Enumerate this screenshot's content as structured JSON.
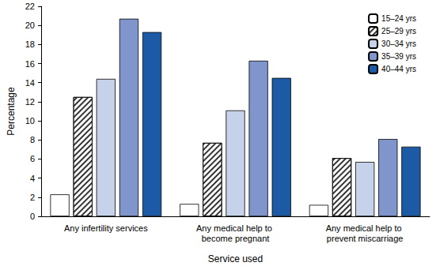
{
  "chart_data": {
    "type": "bar",
    "x_label": "Service used",
    "y_label": "Percentage",
    "categories": [
      "Any infertility services",
      "Any medical help to become pregnant",
      "Any medical help to prevent miscarriage"
    ],
    "series": [
      {
        "name": "15–24 yrs",
        "color": "#ffffff",
        "values": [
          2.3,
          1.3,
          1.2
        ]
      },
      {
        "name": "25–29 yrs",
        "color": "#ffffff",
        "values": [
          12.5,
          7.7,
          6.1
        ]
      },
      {
        "name": "30–34 yrs",
        "color": "#c6d2ea",
        "values": [
          14.4,
          11.1,
          5.7
        ]
      },
      {
        "name": "35–39 yrs",
        "color": "#7f95cb",
        "values": [
          20.7,
          16.3,
          8.1
        ]
      },
      {
        "name": "40–44 yrs",
        "color": "#1d5aa6",
        "values": [
          19.3,
          14.5,
          7.3
        ]
      }
    ],
    "ylim": [
      0,
      22
    ],
    "yticks": [
      0,
      2,
      4,
      6,
      8,
      10,
      12,
      14,
      16,
      18,
      20,
      22
    ],
    "grid": false,
    "legend": "upper right"
  }
}
